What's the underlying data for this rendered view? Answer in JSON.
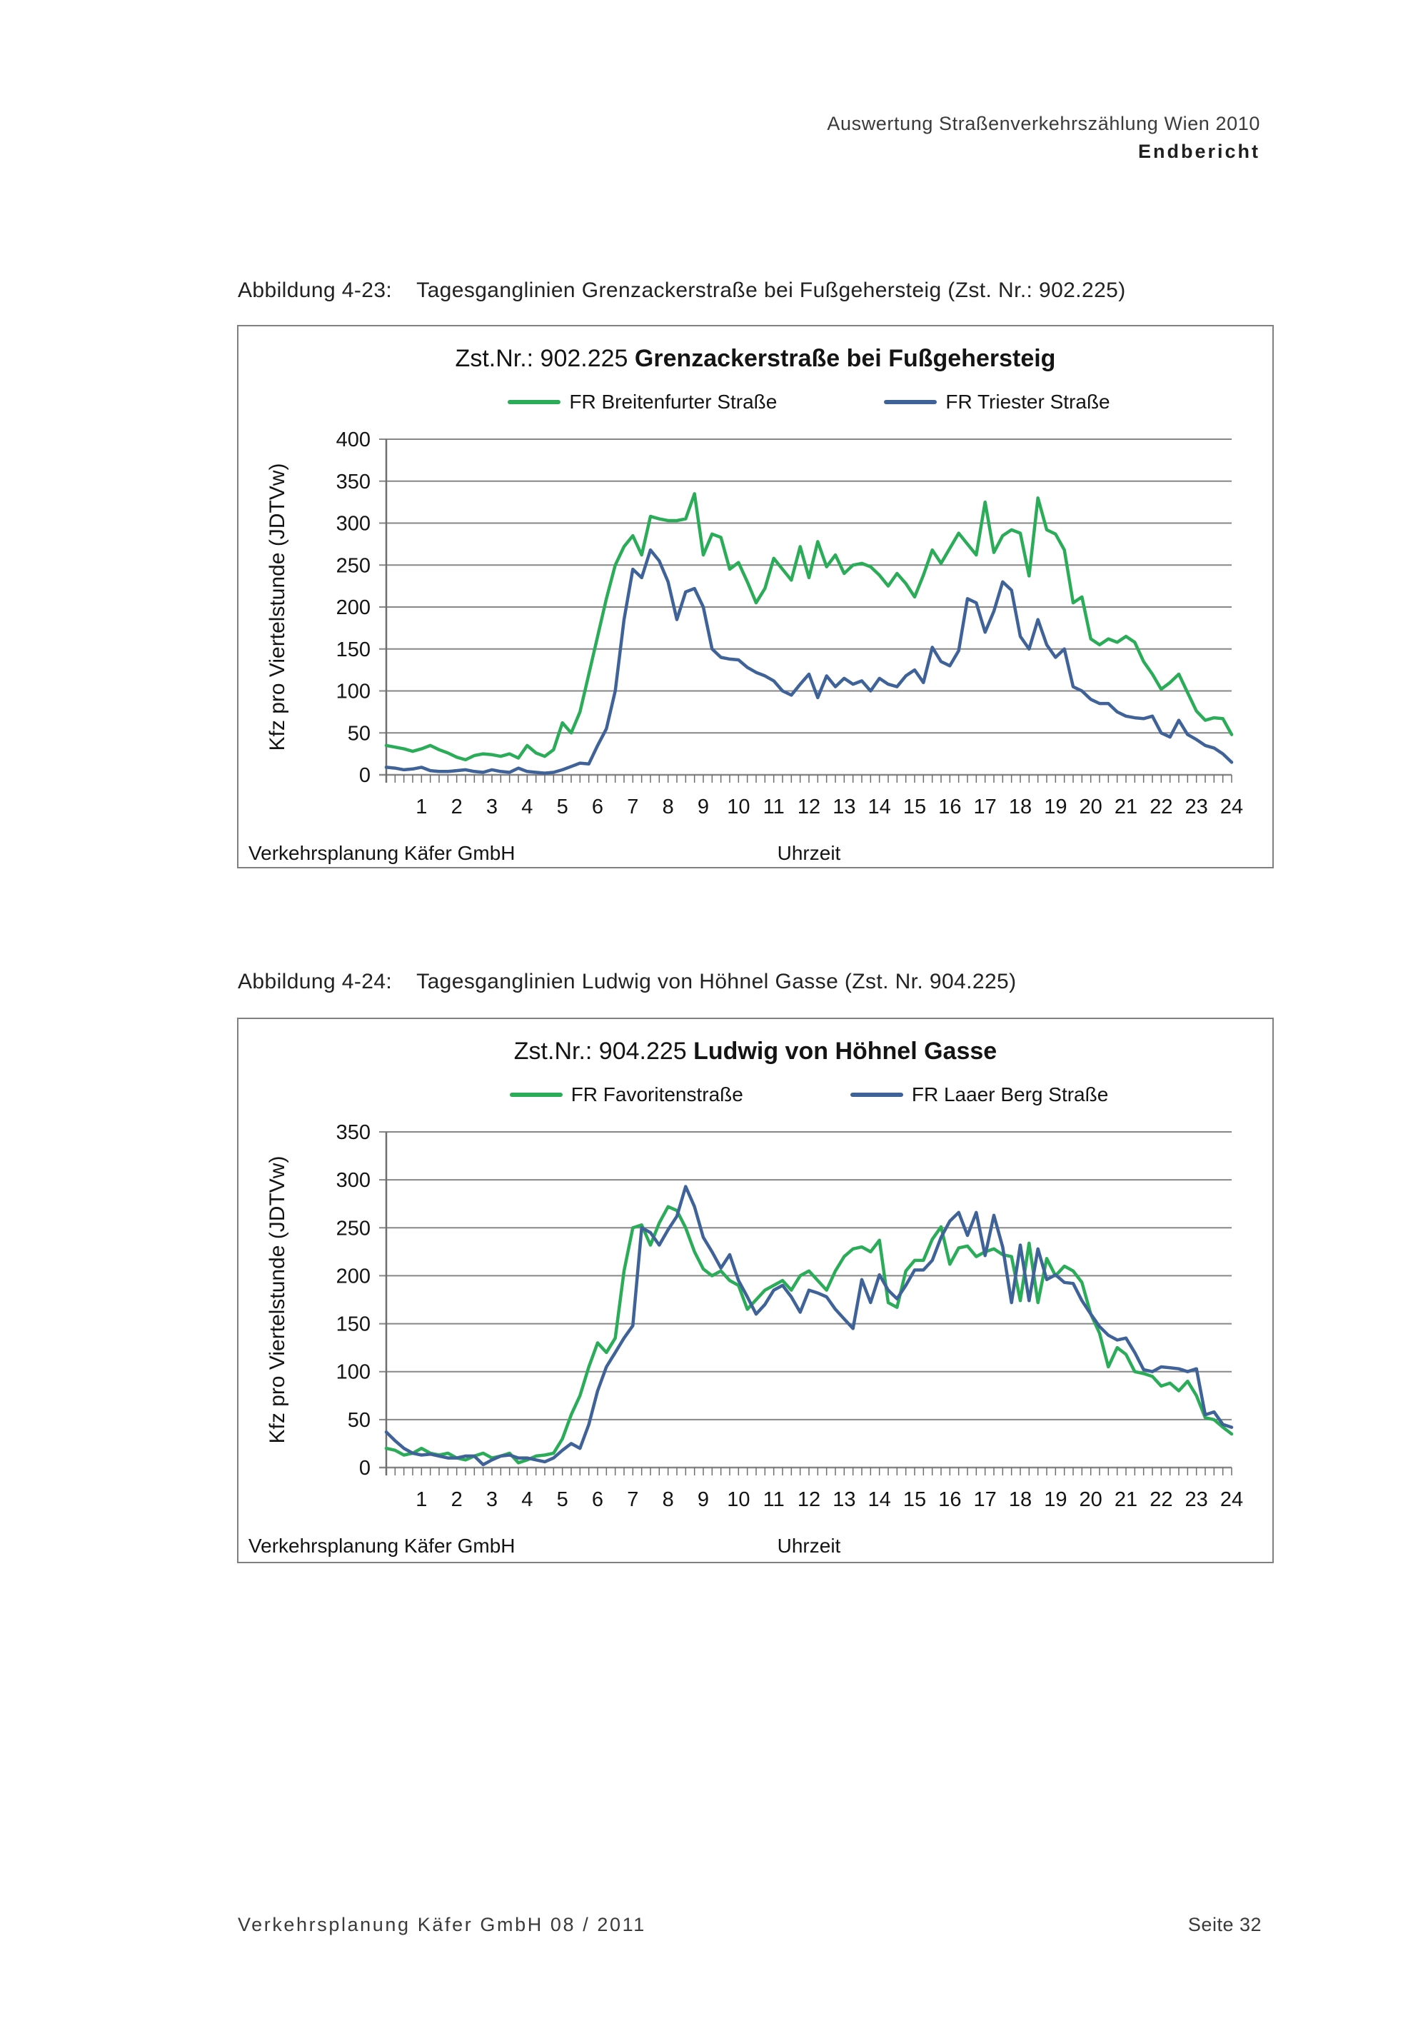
{
  "header": {
    "line1": "Auswertung Straßenverkehrszählung Wien 2010",
    "line2": "Endbericht"
  },
  "captions": [
    {
      "label": "Abbildung 4-23:",
      "text": "Tagesganglinien Grenzackerstraße bei Fußgehersteig (Zst. Nr.: 902.225)"
    },
    {
      "label": "Abbildung 4-24:",
      "text": "Tagesganglinien Ludwig von Höhnel Gasse (Zst. Nr. 904.225)"
    }
  ],
  "footer": {
    "left": "Verkehrsplanung Käfer GmbH  08 / 2011",
    "right": "Seite 32"
  },
  "chart_data": [
    {
      "type": "line",
      "title_prefix": "Zst.Nr.: 902.225 ",
      "title_bold": "Grenzackerstraße bei Fußgehersteig",
      "ylabel": "Kfz pro Viertelstunde (JDTVw)",
      "xlabel": "Uhrzeit",
      "source_note": "Verkehrsplanung Käfer GmbH",
      "ymax": 400,
      "yticks": [
        400,
        350,
        300,
        250,
        200,
        150,
        100,
        50,
        0
      ],
      "x_hours": [
        1,
        2,
        3,
        4,
        5,
        6,
        7,
        8,
        9,
        10,
        11,
        12,
        13,
        14,
        15,
        16,
        17,
        18,
        19,
        20,
        21,
        22,
        23,
        24
      ],
      "x_start": 0,
      "x_step_hours": 0.25,
      "grid": "horizontal",
      "legend_position": "top",
      "series": [
        {
          "name": "FR Breitenfurter Straße",
          "color": "#2bac58",
          "values": [
            35,
            33,
            31,
            28,
            31,
            35,
            30,
            26,
            21,
            18,
            23,
            25,
            24,
            22,
            25,
            20,
            35,
            26,
            22,
            30,
            62,
            50,
            75,
            120,
            165,
            210,
            250,
            272,
            285,
            262,
            308,
            305,
            303,
            303,
            305,
            335,
            262,
            287,
            283,
            245,
            253,
            230,
            205,
            222,
            258,
            245,
            232,
            272,
            235,
            278,
            248,
            262,
            240,
            250,
            252,
            248,
            238,
            225,
            240,
            228,
            212,
            238,
            268,
            252,
            270,
            288,
            275,
            262,
            325,
            265,
            285,
            292,
            288,
            237,
            330,
            292,
            287,
            268,
            205,
            212,
            162,
            155,
            162,
            158,
            165,
            158,
            135,
            120,
            102,
            110,
            120,
            98,
            76,
            65,
            68,
            67,
            48
          ]
        },
        {
          "name": "FR Triester Straße",
          "color": "#3f6398",
          "values": [
            9,
            8,
            6,
            7,
            9,
            5,
            4,
            4,
            5,
            6,
            4,
            3,
            6,
            4,
            3,
            8,
            4,
            3,
            2,
            3,
            6,
            10,
            14,
            13,
            35,
            55,
            100,
            185,
            245,
            235,
            268,
            255,
            230,
            185,
            218,
            222,
            200,
            150,
            140,
            138,
            137,
            128,
            122,
            118,
            112,
            100,
            95,
            108,
            120,
            92,
            118,
            105,
            115,
            108,
            112,
            100,
            115,
            108,
            105,
            118,
            125,
            110,
            152,
            135,
            130,
            148,
            210,
            205,
            170,
            195,
            230,
            220,
            165,
            150,
            185,
            155,
            140,
            150,
            105,
            100,
            90,
            85,
            85,
            75,
            70,
            68,
            67,
            70,
            50,
            45,
            65,
            48,
            42,
            35,
            32,
            25,
            15
          ]
        }
      ]
    },
    {
      "type": "line",
      "title_prefix": "Zst.Nr.: 904.225 ",
      "title_bold": "Ludwig von Höhnel Gasse",
      "ylabel": "Kfz pro Viertelstunde (JDTVw)",
      "xlabel": "Uhrzeit",
      "source_note": "Verkehrsplanung Käfer GmbH",
      "ymax": 350,
      "yticks": [
        350,
        300,
        250,
        200,
        150,
        100,
        50,
        0
      ],
      "x_hours": [
        1,
        2,
        3,
        4,
        5,
        6,
        7,
        8,
        9,
        10,
        11,
        12,
        13,
        14,
        15,
        16,
        17,
        18,
        19,
        20,
        21,
        22,
        23,
        24
      ],
      "x_start": 0,
      "x_step_hours": 0.25,
      "grid": "horizontal",
      "legend_position": "top",
      "series": [
        {
          "name": "FR Favoritenstraße",
          "color": "#2bac58",
          "values": [
            20,
            18,
            13,
            15,
            20,
            15,
            13,
            15,
            10,
            8,
            12,
            15,
            10,
            12,
            15,
            5,
            8,
            12,
            13,
            15,
            30,
            55,
            75,
            105,
            130,
            120,
            135,
            205,
            250,
            253,
            232,
            255,
            272,
            268,
            250,
            225,
            207,
            200,
            205,
            195,
            190,
            165,
            175,
            185,
            190,
            195,
            185,
            200,
            205,
            195,
            185,
            205,
            220,
            228,
            230,
            225,
            237,
            172,
            167,
            205,
            216,
            216,
            238,
            251,
            212,
            229,
            231,
            220,
            225,
            228,
            222,
            220,
            174,
            234,
            172,
            218,
            200,
            210,
            205,
            193,
            160,
            140,
            105,
            125,
            118,
            100,
            98,
            95,
            85,
            88,
            80,
            90,
            75,
            52,
            50,
            42,
            35
          ]
        },
        {
          "name": "FR Laaer Berg Straße",
          "color": "#3f6398",
          "values": [
            37,
            28,
            20,
            15,
            13,
            14,
            12,
            10,
            10,
            12,
            12,
            3,
            8,
            12,
            13,
            10,
            10,
            8,
            6,
            10,
            18,
            25,
            20,
            45,
            80,
            105,
            120,
            135,
            148,
            250,
            245,
            232,
            248,
            262,
            293,
            272,
            240,
            225,
            208,
            222,
            195,
            178,
            160,
            170,
            185,
            190,
            178,
            162,
            185,
            182,
            178,
            165,
            155,
            145,
            196,
            172,
            201,
            185,
            176,
            190,
            206,
            206,
            216,
            240,
            257,
            266,
            242,
            266,
            221,
            263,
            230,
            172,
            232,
            174,
            228,
            196,
            201,
            193,
            192,
            174,
            160,
            147,
            138,
            133,
            135,
            120,
            102,
            100,
            105,
            104,
            103,
            100,
            103,
            55,
            58,
            45,
            42
          ]
        }
      ]
    }
  ]
}
